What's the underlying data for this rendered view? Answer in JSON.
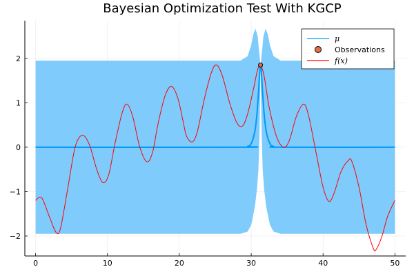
{
  "chart_data": {
    "type": "line",
    "title": "Bayesian Optimization Test With KGCP",
    "xlabel": "",
    "ylabel": "",
    "xlim": [
      -1.5,
      51.5
    ],
    "ylim": [
      -2.45,
      2.85
    ],
    "x_ticks": [
      0,
      10,
      20,
      30,
      40,
      50
    ],
    "x_tick_labels": [
      "0",
      "10",
      "20",
      "30",
      "40",
      "50"
    ],
    "y_ticks": [
      -2,
      -1,
      0,
      1,
      2
    ],
    "y_tick_labels": [
      "−2",
      "−1",
      "0",
      "1",
      "2"
    ],
    "grid": true,
    "legend_position": "top-right",
    "legend": [
      {
        "label": "μ",
        "kind": "line",
        "color": "#009af9"
      },
      {
        "label": "Observations",
        "kind": "marker",
        "color": "#e26f46"
      },
      {
        "label": "f(x)",
        "kind": "line",
        "color": "#ff0000"
      }
    ],
    "series": [
      {
        "name": "μ",
        "color": "#009af9",
        "ribbon_color": "#7fcbfc",
        "points": [
          [
            0,
            0
          ],
          [
            28.5,
            0
          ],
          [
            29.5,
            0.02
          ],
          [
            30.0,
            0.08
          ],
          [
            30.5,
            0.35
          ],
          [
            30.8,
            0.75
          ],
          [
            31.0,
            1.2
          ],
          [
            31.3,
            1.85
          ],
          [
            31.6,
            1.2
          ],
          [
            31.8,
            0.75
          ],
          [
            32.1,
            0.35
          ],
          [
            32.6,
            0.08
          ],
          [
            33.1,
            0.02
          ],
          [
            34.1,
            0
          ],
          [
            50,
            0
          ]
        ],
        "ribbon_lower": [
          [
            0,
            -1.95
          ],
          [
            28.5,
            -1.95
          ],
          [
            29.5,
            -1.9
          ],
          [
            30.0,
            -1.75
          ],
          [
            30.5,
            -1.35
          ],
          [
            30.8,
            -0.95
          ],
          [
            31.0,
            -0.5
          ],
          [
            31.15,
            0.3
          ],
          [
            31.3,
            1.85
          ],
          [
            31.45,
            0.3
          ],
          [
            31.6,
            -0.5
          ],
          [
            31.8,
            -0.95
          ],
          [
            32.1,
            -1.35
          ],
          [
            32.6,
            -1.75
          ],
          [
            33.1,
            -1.9
          ],
          [
            34.1,
            -1.95
          ],
          [
            50,
            -1.95
          ]
        ],
        "ribbon_upper": [
          [
            0,
            1.95
          ],
          [
            28.5,
            1.95
          ],
          [
            29.5,
            2.05
          ],
          [
            30.0,
            2.3
          ],
          [
            30.3,
            2.55
          ],
          [
            30.6,
            2.67
          ],
          [
            30.9,
            2.5
          ],
          [
            31.1,
            2.15
          ],
          [
            31.3,
            1.85
          ],
          [
            31.5,
            2.15
          ],
          [
            31.7,
            2.5
          ],
          [
            32.0,
            2.67
          ],
          [
            32.3,
            2.55
          ],
          [
            32.6,
            2.3
          ],
          [
            33.1,
            2.05
          ],
          [
            34.1,
            1.95
          ],
          [
            50,
            1.95
          ]
        ]
      },
      {
        "name": "Observations",
        "color": "#e26f46",
        "points": [
          [
            31.3,
            1.85
          ]
        ]
      },
      {
        "name": "f(x)",
        "color": "#ff0000",
        "points": [
          [
            0,
            -1.2
          ],
          [
            0.5,
            -1.13
          ],
          [
            1.0,
            -1.18
          ],
          [
            2.0,
            -1.6
          ],
          [
            2.9,
            -1.93
          ],
          [
            3.5,
            -1.8
          ],
          [
            4.5,
            -0.9
          ],
          [
            5.5,
            0.0
          ],
          [
            6.5,
            0.27
          ],
          [
            7.5,
            0.05
          ],
          [
            8.5,
            -0.5
          ],
          [
            9.4,
            -0.8
          ],
          [
            10.2,
            -0.6
          ],
          [
            11.0,
            0.05
          ],
          [
            12.0,
            0.75
          ],
          [
            12.7,
            0.97
          ],
          [
            13.5,
            0.7
          ],
          [
            14.5,
            0.0
          ],
          [
            15.5,
            -0.33
          ],
          [
            16.3,
            -0.1
          ],
          [
            17.0,
            0.5
          ],
          [
            18.0,
            1.15
          ],
          [
            18.9,
            1.37
          ],
          [
            19.8,
            1.1
          ],
          [
            20.5,
            0.6
          ],
          [
            21.0,
            0.25
          ],
          [
            21.8,
            0.12
          ],
          [
            22.5,
            0.35
          ],
          [
            23.5,
            1.1
          ],
          [
            24.5,
            1.7
          ],
          [
            25.2,
            1.85
          ],
          [
            26.0,
            1.6
          ],
          [
            27.0,
            1.0
          ],
          [
            28.0,
            0.55
          ],
          [
            28.8,
            0.48
          ],
          [
            29.5,
            0.75
          ],
          [
            30.3,
            1.3
          ],
          [
            30.9,
            1.75
          ],
          [
            31.3,
            1.85
          ],
          [
            31.8,
            1.6
          ],
          [
            32.5,
            0.9
          ],
          [
            33.5,
            0.25
          ],
          [
            34.5,
            0.0
          ],
          [
            35.3,
            0.15
          ],
          [
            36.3,
            0.7
          ],
          [
            37.3,
            0.97
          ],
          [
            38.0,
            0.7
          ],
          [
            39.0,
            -0.1
          ],
          [
            40.0,
            -0.9
          ],
          [
            40.8,
            -1.22
          ],
          [
            41.5,
            -1.05
          ],
          [
            42.5,
            -0.55
          ],
          [
            43.5,
            -0.3
          ],
          [
            44.0,
            -0.32
          ],
          [
            45.0,
            -0.9
          ],
          [
            46.0,
            -1.75
          ],
          [
            47.0,
            -2.28
          ],
          [
            47.4,
            -2.3
          ],
          [
            48.2,
            -2.0
          ],
          [
            49.0,
            -1.55
          ],
          [
            50.0,
            -1.2
          ]
        ]
      }
    ]
  }
}
